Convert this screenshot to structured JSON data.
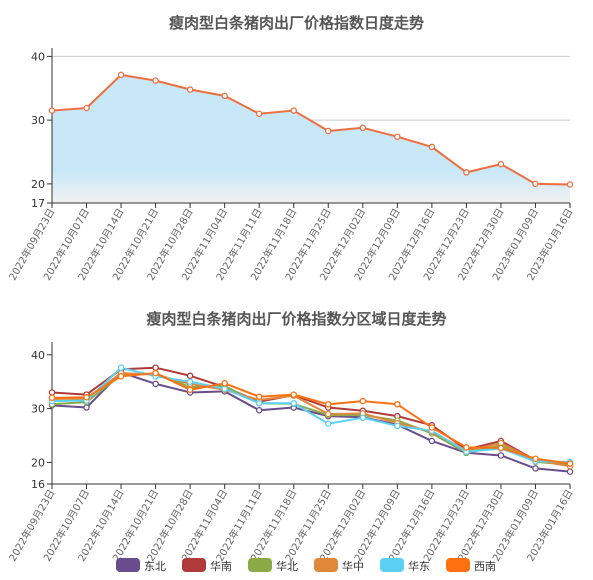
{
  "chart_data": [
    {
      "type": "area",
      "title": "瘦肉型白条猪肉出厂价格指数日度走势",
      "categories": [
        "2022年09月23日",
        "2022年10月07日",
        "2022年10月14日",
        "2022年10月21日",
        "2022年10月28日",
        "2022年11月04日",
        "2022年11月11日",
        "2022年11月18日",
        "2022年11月25日",
        "2022年12月02日",
        "2022年12月09日",
        "2022年12月16日",
        "2022年12月23日",
        "2022年12月30日",
        "2023年01月09日",
        "2023年01月16日"
      ],
      "series": [
        {
          "values": [
            31.5,
            31.9,
            37.1,
            36.2,
            34.8,
            33.8,
            31.0,
            31.5,
            28.3,
            28.8,
            27.4,
            25.8,
            21.8,
            23.1,
            20.0,
            19.9
          ],
          "color": "#ee6e3e"
        }
      ],
      "fill_color": "#c8e8f8",
      "ylim": [
        17,
        41
      ],
      "yticks": [
        17,
        20,
        30,
        40
      ],
      "grid": true
    },
    {
      "type": "line",
      "title": "瘦肉型白条猪肉出厂价格指数分区域日度走势",
      "categories": [
        "2022年09月23日",
        "2022年10月07日",
        "2022年10月14日",
        "2022年10月21日",
        "2022年10月28日",
        "2022年11月04日",
        "2022年11月11日",
        "2022年11月18日",
        "2022年11月25日",
        "2022年12月02日",
        "2022年12月09日",
        "2022年12月16日",
        "2022年12月23日",
        "2022年12月30日",
        "2023年01月09日",
        "2023年01月16日"
      ],
      "series": [
        {
          "name": "东北",
          "color": "#6a4c8c",
          "values": [
            30.6,
            30.2,
            36.7,
            34.6,
            33.0,
            33.2,
            29.7,
            30.2,
            28.6,
            28.4,
            27.0,
            24.0,
            21.8,
            21.3,
            18.9,
            18.3
          ]
        },
        {
          "name": "华南",
          "color": "#b03a3a",
          "values": [
            33.0,
            32.6,
            37.3,
            37.6,
            36.1,
            34.0,
            31.3,
            32.5,
            30.2,
            29.6,
            28.6,
            26.9,
            22.4,
            24.0,
            20.4,
            19.4
          ]
        },
        {
          "name": "华北",
          "color": "#8aaa48",
          "values": [
            30.8,
            31.2,
            36.3,
            36.5,
            34.0,
            34.2,
            31.0,
            30.9,
            28.8,
            28.8,
            27.8,
            25.4,
            21.8,
            23.2,
            20.1,
            19.6
          ]
        },
        {
          "name": "华中",
          "color": "#e0883a",
          "values": [
            31.8,
            31.8,
            36.6,
            36.3,
            34.6,
            33.5,
            31.6,
            32.4,
            29.0,
            29.1,
            27.3,
            25.7,
            22.2,
            23.6,
            20.4,
            19.3
          ]
        },
        {
          "name": "华东",
          "color": "#5ad0f4",
          "values": [
            31.4,
            31.5,
            37.6,
            36.0,
            35.0,
            33.7,
            31.0,
            31.0,
            27.2,
            28.3,
            26.8,
            25.9,
            22.0,
            22.6,
            20.2,
            20.1
          ]
        },
        {
          "name": "西南",
          "color": "#ff7010",
          "values": [
            32.0,
            32.1,
            36.0,
            36.6,
            33.5,
            34.7,
            32.2,
            32.6,
            30.8,
            31.4,
            30.8,
            26.5,
            22.8,
            22.7,
            20.7,
            19.8
          ]
        }
      ],
      "ylim": [
        16,
        42
      ],
      "yticks": [
        16,
        20,
        30,
        40
      ],
      "grid": false,
      "legend_position": "bottom"
    }
  ]
}
